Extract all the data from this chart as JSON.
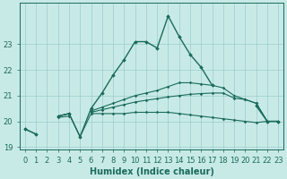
{
  "xlabel": "Humidex (Indice chaleur)",
  "background_color": "#c8eae6",
  "grid_color": "#99cccc",
  "line_color": "#1a6b5a",
  "x": [
    0,
    1,
    2,
    3,
    4,
    5,
    6,
    7,
    8,
    9,
    10,
    11,
    12,
    13,
    14,
    15,
    16,
    17,
    18,
    19,
    20,
    21,
    22,
    23
  ],
  "line1": [
    19.7,
    19.5,
    null,
    20.2,
    20.3,
    19.4,
    20.5,
    21.1,
    21.8,
    22.4,
    23.1,
    23.1,
    22.85,
    24.1,
    23.3,
    22.6,
    22.1,
    21.4,
    null,
    null,
    null,
    20.6,
    20.0,
    20.0
  ],
  "line2": [
    19.7,
    19.5,
    null,
    20.2,
    20.3,
    19.4,
    20.3,
    20.3,
    20.3,
    20.3,
    20.35,
    20.35,
    20.35,
    20.35,
    20.3,
    20.25,
    20.2,
    20.15,
    20.1,
    20.05,
    20.0,
    19.95,
    20.0,
    20.0
  ],
  "line3": [
    19.7,
    null,
    null,
    20.2,
    20.3,
    null,
    20.4,
    20.55,
    20.7,
    20.85,
    21.0,
    21.1,
    21.2,
    21.35,
    21.5,
    21.5,
    21.45,
    21.4,
    21.3,
    21.0,
    20.85,
    20.7,
    20.0,
    20.0
  ],
  "line4": [
    19.7,
    null,
    null,
    20.15,
    20.2,
    null,
    20.35,
    20.45,
    20.55,
    20.65,
    20.75,
    20.82,
    20.88,
    20.95,
    21.0,
    21.05,
    21.08,
    21.1,
    21.1,
    20.9,
    20.85,
    20.7,
    20.0,
    20.0
  ],
  "ylim": [
    18.9,
    24.6
  ],
  "yticks": [
    19,
    20,
    21,
    22,
    23
  ],
  "xticks": [
    0,
    1,
    2,
    3,
    4,
    5,
    6,
    7,
    8,
    9,
    10,
    11,
    12,
    13,
    14,
    15,
    16,
    17,
    18,
    19,
    20,
    21,
    22,
    23
  ]
}
